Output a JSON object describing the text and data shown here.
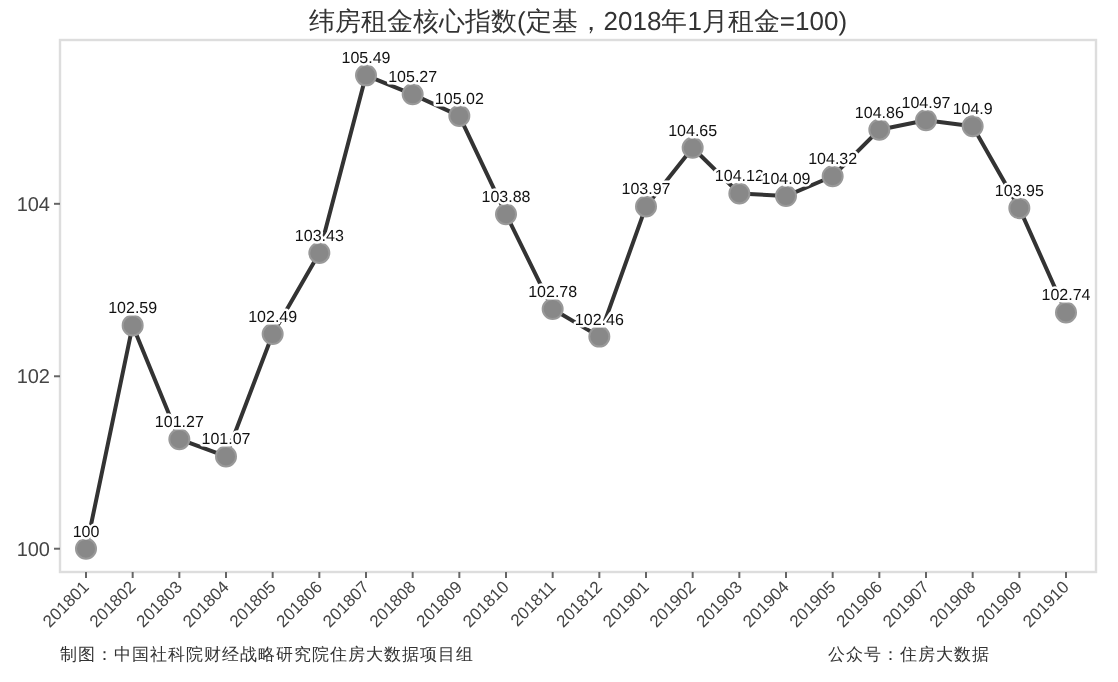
{
  "chart_data": {
    "type": "line",
    "title": "纬房租金核心指数(定基，2018年1月租金=100)",
    "categories": [
      "201801",
      "201802",
      "201803",
      "201804",
      "201805",
      "201806",
      "201807",
      "201808",
      "201809",
      "201810",
      "201811",
      "201812",
      "201901",
      "201902",
      "201903",
      "201904",
      "201905",
      "201906",
      "201907",
      "201908",
      "201909",
      "201910"
    ],
    "series": [
      {
        "color": "#333333",
        "values": [
          100,
          102.59,
          101.27,
          101.07,
          102.49,
          103.43,
          105.49,
          105.27,
          105.02,
          103.88,
          102.78,
          102.46,
          103.97,
          104.65,
          104.12,
          104.09,
          104.32,
          104.86,
          104.97,
          104.9,
          103.95,
          102.74
        ]
      }
    ],
    "ylim": [
      99.73,
      105.9
    ],
    "yticks": [
      100,
      102,
      104
    ],
    "grid": false,
    "marker": "circle",
    "line_style": "solid",
    "data_labels": true,
    "annotations": [
      "制图：中国社科院财经战略研究院住房大数据项目组",
      "公众号：住房大数据"
    ]
  }
}
